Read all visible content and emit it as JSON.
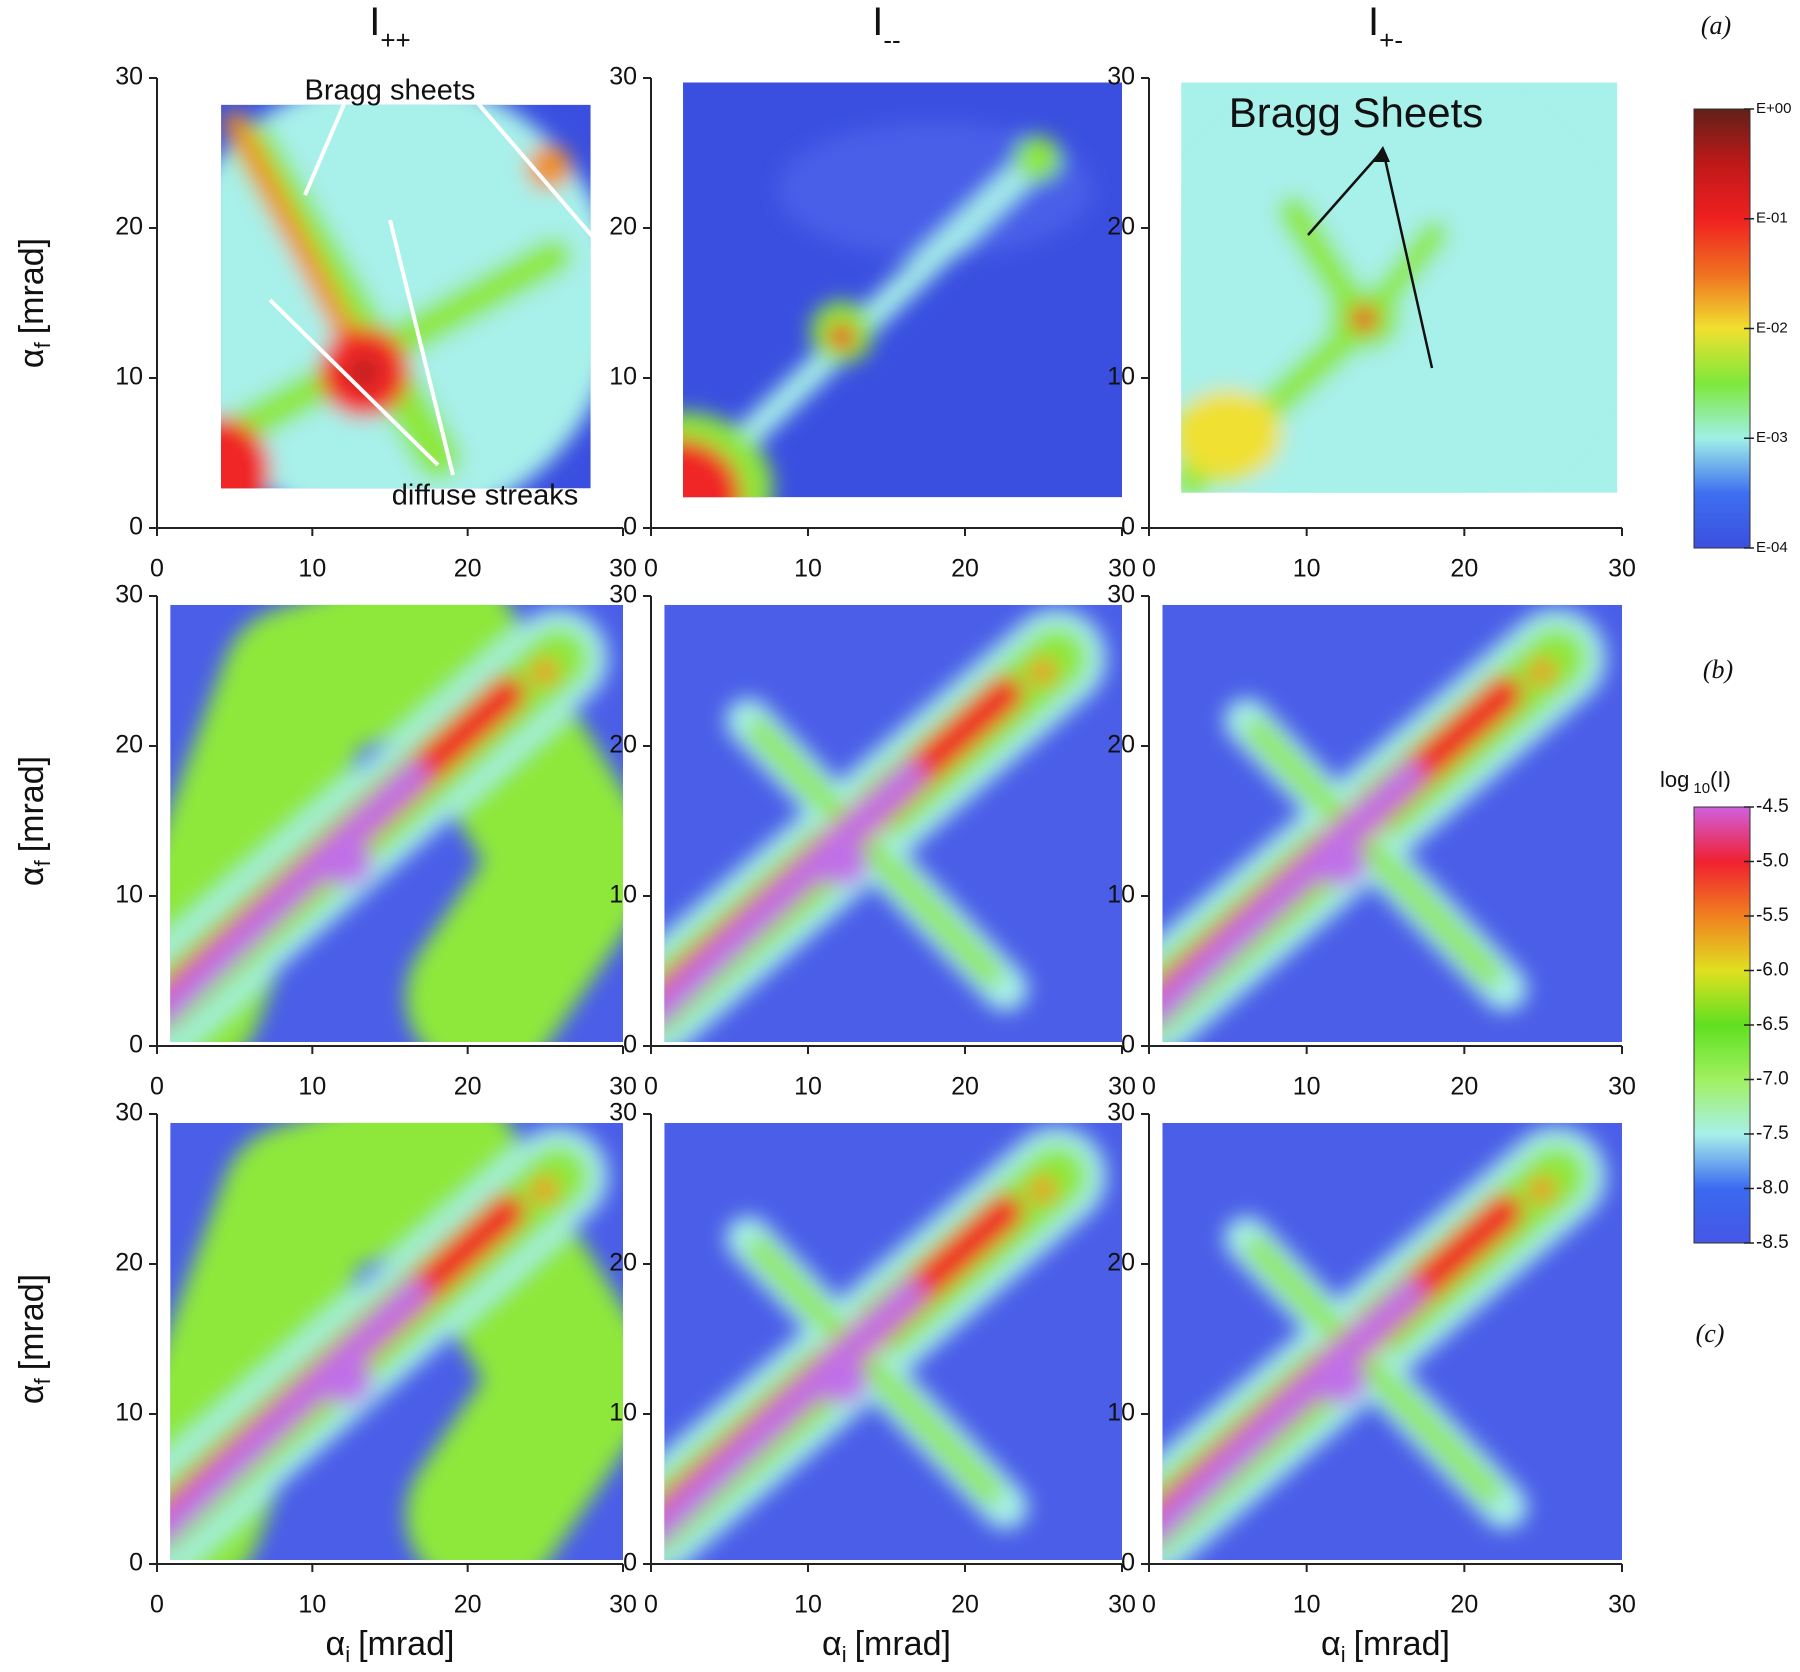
{
  "chart_data": [
    {
      "type": "heatmap",
      "title": "I",
      "title_subscript": "++",
      "ylabel": {
        "symbol": "α",
        "subscript": "f",
        "unit": "[mrad]"
      },
      "xlim": [
        0,
        30
      ],
      "ylim": [
        0,
        30
      ],
      "xticks": [
        0,
        10,
        20,
        30
      ],
      "yticks": [
        0,
        10,
        20,
        30
      ],
      "annotations": [
        "Bragg sheets",
        "diffuse streaks"
      ]
    },
    {
      "type": "heatmap",
      "title": "I",
      "title_subscript": "--",
      "xlim": [
        0,
        30
      ],
      "ylim": [
        0,
        30
      ],
      "xticks": [
        0,
        10,
        20,
        30
      ],
      "yticks": [
        0,
        10,
        20,
        30
      ]
    },
    {
      "type": "heatmap",
      "title": "I",
      "title_subscript": "+-",
      "xlim": [
        0,
        30
      ],
      "ylim": [
        0,
        30
      ],
      "xticks": [
        0,
        10,
        20,
        30
      ],
      "yticks": [
        0,
        10,
        20,
        30
      ],
      "annotations": [
        "Bragg Sheets"
      ]
    },
    {
      "type": "heatmap",
      "ylabel": {
        "symbol": "α",
        "subscript": "f",
        "unit": "[mrad]"
      },
      "xlim": [
        0,
        30
      ],
      "ylim": [
        0,
        30
      ],
      "xticks": [
        0,
        10,
        20,
        30
      ],
      "yticks": [
        0,
        10,
        20,
        30
      ]
    },
    {
      "type": "heatmap",
      "xlim": [
        0,
        30
      ],
      "ylim": [
        0,
        30
      ],
      "xticks": [
        0,
        10,
        20,
        30
      ],
      "yticks": [
        0,
        10,
        20,
        30
      ]
    },
    {
      "type": "heatmap",
      "xlim": [
        0,
        30
      ],
      "ylim": [
        0,
        30
      ],
      "xticks": [
        0,
        10,
        20,
        30
      ],
      "yticks": [
        0,
        10,
        20,
        30
      ]
    },
    {
      "type": "heatmap",
      "ylabel": {
        "symbol": "α",
        "subscript": "f",
        "unit": "[mrad]"
      },
      "xlabel": {
        "symbol": "α",
        "subscript": "i",
        "unit": "[mrad]"
      },
      "xlim": [
        0,
        30
      ],
      "ylim": [
        0,
        30
      ],
      "xticks": [
        0,
        10,
        20,
        30
      ],
      "yticks": [
        0,
        10,
        20,
        30
      ]
    },
    {
      "type": "heatmap",
      "xlabel": {
        "symbol": "α",
        "subscript": "i",
        "unit": "[mrad]"
      },
      "xlim": [
        0,
        30
      ],
      "ylim": [
        0,
        30
      ],
      "xticks": [
        0,
        10,
        20,
        30
      ],
      "yticks": [
        0,
        10,
        20,
        30
      ]
    },
    {
      "type": "heatmap",
      "xlabel": {
        "symbol": "α",
        "subscript": "i",
        "unit": "[mrad]"
      },
      "xlim": [
        0,
        30
      ],
      "ylim": [
        0,
        30
      ],
      "xticks": [
        0,
        10,
        20,
        30
      ],
      "yticks": [
        0,
        10,
        20,
        30
      ]
    },
    {
      "type": "colorbar",
      "ylim": [
        -4,
        0
      ],
      "yticks": [
        {
          "value": 0,
          "label": "E+00"
        },
        {
          "value": -1,
          "label": "E-01"
        },
        {
          "value": -2,
          "label": "E-02"
        },
        {
          "value": -3,
          "label": "E-03"
        },
        {
          "value": -4,
          "label": "E-04"
        }
      ],
      "colors": [
        "#3a4fe0",
        "#3f6ff0",
        "#9ff0e6",
        "#7ee83a",
        "#f0e030",
        "#f07020",
        "#f02020",
        "#c01818",
        "#602018"
      ]
    },
    {
      "type": "colorbar",
      "title": "log",
      "title_subscript": "10",
      "title_suffix": "(I)",
      "ylim": [
        -8.5,
        -4.5
      ],
      "yticks": [
        -4.5,
        {
          "value": -5,
          "label": "-5.0"
        },
        -5.5,
        {
          "value": -6,
          "label": "-6.0"
        },
        -6.5,
        {
          "value": -7,
          "label": "-7.0"
        },
        -7.5,
        {
          "value": -8,
          "label": "-8.0"
        },
        -8.5
      ],
      "colors": [
        "#4656e6",
        "#3a6af0",
        "#a8f0ea",
        "#a0f060",
        "#60e020",
        "#e0e020",
        "#f08020",
        "#f02030",
        "#d060e0"
      ]
    }
  ],
  "row_labels": [
    "(a)",
    "(b)",
    "(c)"
  ]
}
